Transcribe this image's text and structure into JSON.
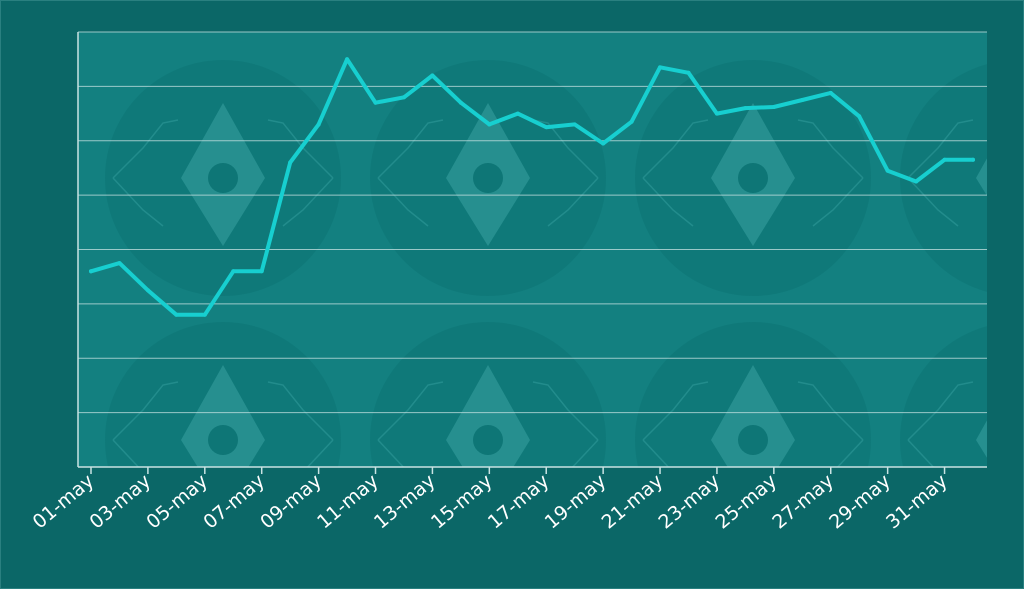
{
  "colors": {
    "background": "#0b6767",
    "plot_area": "#138080",
    "gridline": "#c9e3e3",
    "line": "#17cfd0",
    "text": "#ffffff",
    "watermark": "#3aa3a3"
  },
  "watermark_icon": "ethereum-diamond-icon",
  "chart_data": {
    "type": "line",
    "title": "",
    "xlabel": "",
    "ylabel": "",
    "grid": "horizontal",
    "y_tick_labels_visible": false,
    "ylim": [
      0,
      8
    ],
    "x": [
      "01-may",
      "02-may",
      "03-may",
      "04-may",
      "05-may",
      "06-may",
      "07-may",
      "08-may",
      "09-may",
      "10-may",
      "11-may",
      "12-may",
      "13-may",
      "14-may",
      "15-may",
      "16-may",
      "17-may",
      "18-may",
      "19-may",
      "20-may",
      "21-may",
      "22-may",
      "23-may",
      "24-may",
      "25-may",
      "26-may",
      "27-may",
      "28-may",
      "29-may",
      "30-may",
      "31-may",
      "01-jun"
    ],
    "x_tick_labels": [
      "01-may",
      "03-may",
      "05-may",
      "07-may",
      "09-may",
      "11-may",
      "13-may",
      "15-may",
      "17-may",
      "19-may",
      "21-may",
      "23-may",
      "25-may",
      "27-may",
      "29-may",
      "31-may"
    ],
    "series": [
      {
        "values": [
          3.6,
          3.75,
          3.25,
          2.8,
          2.8,
          3.6,
          3.6,
          5.6,
          6.3,
          7.5,
          6.7,
          6.8,
          7.2,
          6.7,
          6.3,
          6.5,
          6.25,
          6.3,
          5.95,
          6.35,
          7.35,
          7.25,
          6.5,
          6.6,
          6.62,
          6.75,
          6.88,
          6.45,
          5.45,
          5.25,
          5.65,
          5.65
        ]
      }
    ]
  }
}
